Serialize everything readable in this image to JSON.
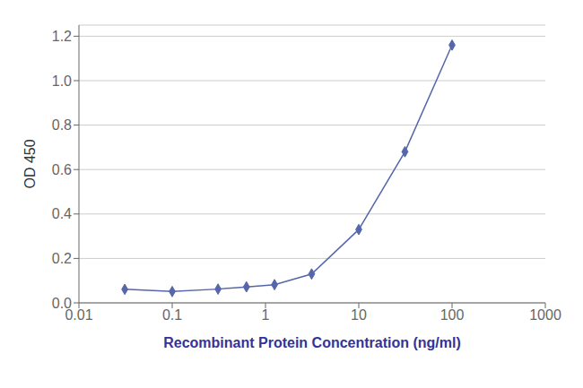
{
  "chart_data": {
    "type": "line",
    "xlabel": "Recombinant Protein Concentration (ng/ml)",
    "ylabel": "OD 450",
    "x": [
      0.031,
      0.1,
      0.31,
      0.625,
      1.25,
      3.125,
      10,
      31.25,
      100
    ],
    "values": [
      0.061,
      0.051,
      0.062,
      0.072,
      0.082,
      0.13,
      0.33,
      0.68,
      1.16
    ],
    "color": "#5566aa",
    "marker": "diamond",
    "log": "x",
    "xlim": [
      0.01,
      1000
    ],
    "ylim": [
      0,
      1.25
    ],
    "xticks": [
      0.01,
      0.1,
      1,
      10,
      100,
      1000
    ],
    "yticks": [
      {
        "value": 0,
        "label": "0.0"
      },
      0.2,
      0.4,
      0.6,
      0.8,
      {
        "value": 1,
        "label": "1.0"
      },
      1.2
    ],
    "grid": true
  }
}
